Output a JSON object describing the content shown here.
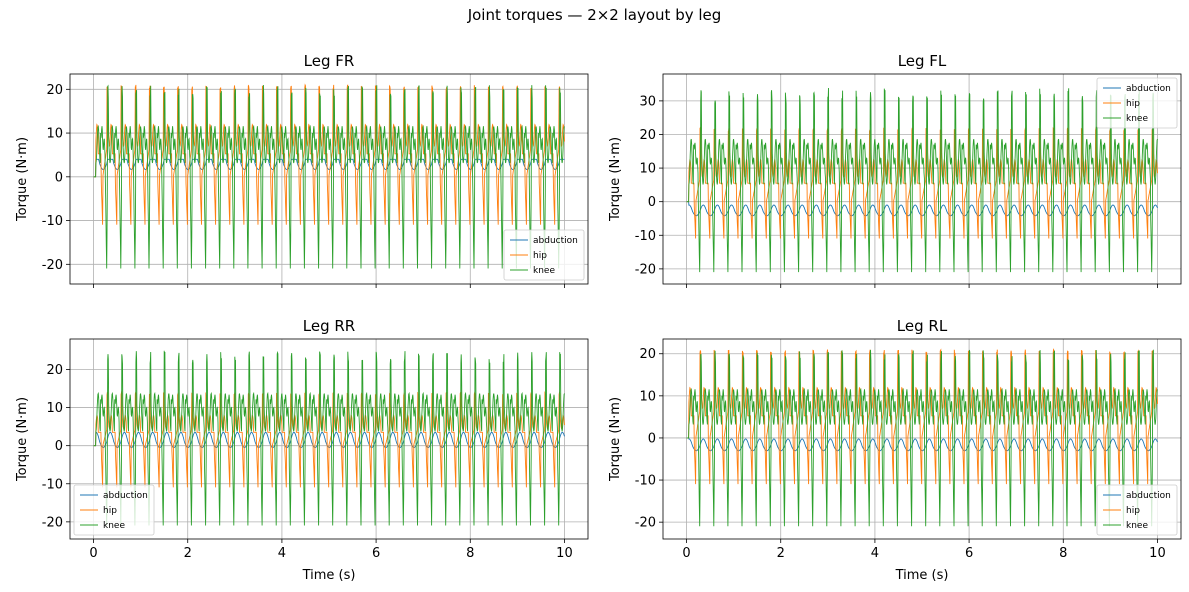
{
  "figure": {
    "title": "Joint torques — 2×2 layout by leg"
  },
  "colors": {
    "abduction": "#1f77b4",
    "hip": "#ff7f0e",
    "knee": "#2ca02c",
    "grid": "#b0b0b0"
  },
  "chart_data": [
    {
      "type": "line",
      "title": "Leg FR",
      "xlabel": "",
      "ylabel": "Torque (N·m)",
      "xlim": [
        -0.5,
        10.5
      ],
      "ylim": [
        -24.5,
        23.5
      ],
      "xticks": [
        0,
        2,
        4,
        6,
        8,
        10
      ],
      "yticks": [
        -20,
        -10,
        0,
        10,
        20
      ],
      "show_xtick_labels": false,
      "grid": true,
      "legend_loc": "lower-right",
      "series": [
        {
          "name": "abduction",
          "min": -5,
          "max": 4,
          "typical": 3
        },
        {
          "name": "hip",
          "min": -12,
          "max": 21
        },
        {
          "name": "knee",
          "min": -22,
          "max": 21
        }
      ]
    },
    {
      "type": "line",
      "title": "Leg FL",
      "xlabel": "",
      "ylabel": "Torque (N·m)",
      "xlim": [
        -0.5,
        10.5
      ],
      "ylim": [
        -24.5,
        38
      ],
      "xticks": [
        0,
        2,
        4,
        6,
        8,
        10
      ],
      "yticks": [
        -20,
        -10,
        0,
        10,
        20,
        30
      ],
      "show_xtick_labels": false,
      "grid": true,
      "legend_loc": "upper-right",
      "series": [
        {
          "name": "abduction",
          "min": -7,
          "max": 1,
          "typical": -3
        },
        {
          "name": "hip",
          "min": -12,
          "max": 22
        },
        {
          "name": "knee",
          "min": -22,
          "max": 34
        }
      ]
    },
    {
      "type": "line",
      "title": "Leg RR",
      "xlabel": "Time (s)",
      "ylabel": "Torque (N·m)",
      "xlim": [
        -0.5,
        10.5
      ],
      "ylim": [
        -24.5,
        28
      ],
      "xticks": [
        0,
        2,
        4,
        6,
        8,
        10
      ],
      "yticks": [
        -20,
        -10,
        0,
        10,
        20
      ],
      "show_xtick_labels": true,
      "grid": true,
      "legend_loc": "lower-left",
      "series": [
        {
          "name": "abduction",
          "min": -3,
          "max": 7,
          "typical": 1
        },
        {
          "name": "hip",
          "min": -12,
          "max": 14
        },
        {
          "name": "knee",
          "min": -22,
          "max": 25
        }
      ]
    },
    {
      "type": "line",
      "title": "Leg RL",
      "xlabel": "Time (s)",
      "ylabel": "Torque (N·m)",
      "xlim": [
        -0.5,
        10.5
      ],
      "ylim": [
        -24,
        23.5
      ],
      "xticks": [
        0,
        2,
        4,
        6,
        8,
        10
      ],
      "yticks": [
        -20,
        -10,
        0,
        10,
        20
      ],
      "show_xtick_labels": true,
      "grid": true,
      "legend_loc": "lower-right",
      "series": [
        {
          "name": "abduction",
          "min": -5,
          "max": 2,
          "typical": -2
        },
        {
          "name": "hip",
          "min": -12,
          "max": 21
        },
        {
          "name": "knee",
          "min": -22,
          "max": 21
        }
      ]
    }
  ]
}
